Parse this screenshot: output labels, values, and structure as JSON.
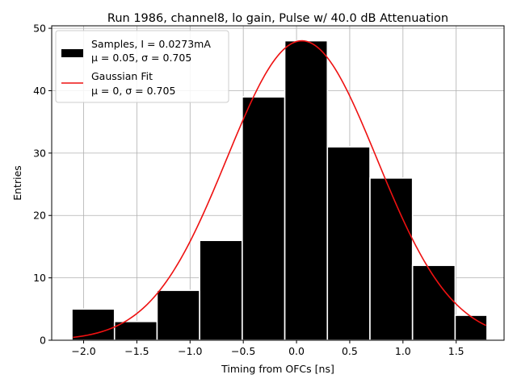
{
  "chart_data": {
    "type": "bar",
    "title": "Run 1986, channel8, lo gain, Pulse w/ 40.0 dB Attenuation",
    "xlabel": "Timing from OFCs [ns]",
    "ylabel": "Entries",
    "xlim": [
      -2.3,
      1.95
    ],
    "ylim": [
      0,
      50.4
    ],
    "xticks": [
      -2.0,
      -1.5,
      -1.0,
      -0.5,
      0.0,
      0.5,
      1.0,
      1.5
    ],
    "xtick_labels": [
      "−2.0",
      "−1.5",
      "−1.0",
      "−0.5",
      "0.0",
      "0.5",
      "1.0",
      "1.5"
    ],
    "yticks": [
      0,
      10,
      20,
      30,
      40,
      50
    ],
    "ytick_labels": [
      "0",
      "10",
      "20",
      "30",
      "40",
      "50"
    ],
    "grid": true,
    "histogram": {
      "bin_edges": [
        -2.11,
        -1.71,
        -1.31,
        -0.91,
        -0.51,
        -0.11,
        0.29,
        0.69,
        1.09,
        1.49,
        1.79
      ],
      "counts": [
        5,
        3,
        8,
        16,
        39,
        48,
        31,
        26,
        12,
        4
      ],
      "color": "#000000",
      "edge_color": "#ffffff"
    },
    "fit": {
      "type": "gaussian",
      "mu": 0.05,
      "sigma": 0.705,
      "amplitude": 48,
      "x_range": [
        -2.1,
        1.78
      ],
      "color": "#ee1111"
    },
    "legend": {
      "placement": "top-left",
      "entries": [
        {
          "kind": "patch",
          "line1": "Samples, I = 0.0273mA",
          "line2": "μ = 0.05, σ = 0.705"
        },
        {
          "kind": "line",
          "line1": "Gaussian Fit",
          "line2": "μ = 0, σ = 0.705"
        }
      ]
    }
  }
}
